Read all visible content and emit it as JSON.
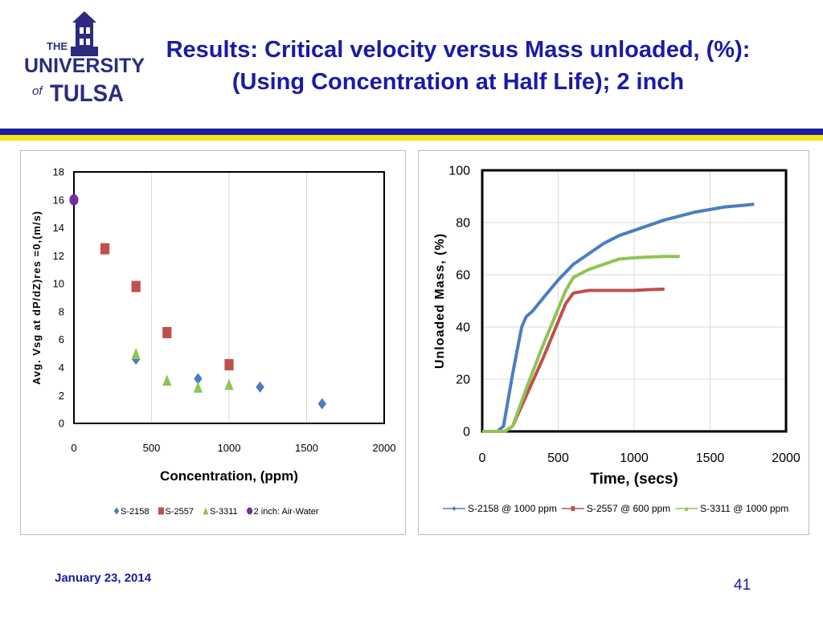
{
  "slide": {
    "title_line1": "Results: Critical velocity versus Mass unloaded, (%):",
    "title_line2": "(Using Concentration at Half Life); 2 inch",
    "date": "January 23, 2014",
    "page_number": "41"
  },
  "logo": {
    "text_the": "THE",
    "text_university": "UNIVERSITY",
    "text_of": "of",
    "text_tulsa": "TULSA"
  },
  "colors": {
    "title": "#1a1aa6",
    "rule_blue": "#1c1c9c",
    "rule_yellow": "#f5e51a",
    "series_blue": "#4a7ec0",
    "series_red": "#c0504d",
    "series_green": "#8fc454",
    "series_purple": "#7030a0"
  },
  "chart_data": [
    {
      "type": "scatter",
      "title": "",
      "xlabel": "Concentration, (ppm)",
      "ylabel": "Avg. Vsg at dP/dZ)res =0,(m/s)",
      "xlim": [
        0,
        2000
      ],
      "ylim": [
        0,
        18
      ],
      "xticks": [
        0,
        500,
        1000,
        1500,
        2000
      ],
      "yticks": [
        0,
        2,
        4,
        6,
        8,
        10,
        12,
        14,
        16,
        18
      ],
      "grid": "vertical",
      "legend_position": "bottom",
      "series": [
        {
          "name": "S-2158",
          "marker": "diamond",
          "color": "#4a7ec0",
          "x": [
            400,
            800,
            1200,
            1600
          ],
          "y": [
            4.6,
            3.2,
            2.6,
            1.4
          ]
        },
        {
          "name": "S-2557",
          "marker": "square",
          "color": "#c0504d",
          "x": [
            200,
            400,
            600,
            1000
          ],
          "y": [
            12.5,
            9.8,
            6.5,
            4.2
          ]
        },
        {
          "name": "S-3311",
          "marker": "triangle",
          "color": "#8fc454",
          "x": [
            400,
            600,
            800,
            1000
          ],
          "y": [
            5.0,
            3.1,
            2.6,
            2.8
          ]
        },
        {
          "name": "2 inch: Air-Water",
          "marker": "circle",
          "color": "#7030a0",
          "x": [
            0
          ],
          "y": [
            16.0
          ]
        }
      ]
    },
    {
      "type": "line",
      "title": "",
      "xlabel": "Time, (secs)",
      "ylabel": "Unloaded Mass, (%)",
      "xlim": [
        0,
        2000
      ],
      "ylim": [
        0,
        100
      ],
      "xticks": [
        0,
        500,
        1000,
        1500,
        2000
      ],
      "yticks": [
        0,
        20,
        40,
        60,
        80,
        100
      ],
      "grid": "both",
      "legend_position": "bottom",
      "series": [
        {
          "name": "S-2158 @ 1000 ppm",
          "marker": "diamond",
          "color": "#4a7ec0",
          "x": [
            0,
            100,
            140,
            200,
            260,
            290,
            330,
            400,
            500,
            600,
            700,
            800,
            900,
            1000,
            1100,
            1200,
            1300,
            1400,
            1500,
            1600,
            1700,
            1790
          ],
          "y": [
            0,
            0,
            2,
            22,
            40,
            44,
            46,
            51,
            58,
            64,
            68,
            72,
            75,
            77,
            79,
            81,
            82.5,
            84,
            85,
            86,
            86.5,
            87
          ]
        },
        {
          "name": "S-2557 @ 600 ppm",
          "marker": "square",
          "color": "#c0504d",
          "x": [
            0,
            150,
            200,
            300,
            400,
            500,
            550,
            600,
            700,
            800,
            900,
            1000,
            1100,
            1200
          ],
          "y": [
            0,
            0,
            2,
            15,
            28,
            42,
            49,
            53,
            54,
            54,
            54,
            54,
            54.3,
            54.5
          ]
        },
        {
          "name": "S-3311 @ 1000 ppm",
          "marker": "triangle",
          "color": "#8fc454",
          "x": [
            0,
            150,
            200,
            300,
            400,
            500,
            550,
            600,
            700,
            800,
            900,
            1000,
            1100,
            1200,
            1300
          ],
          "y": [
            0,
            0,
            2,
            18,
            33,
            47,
            54,
            59,
            62,
            64,
            66,
            66.5,
            66.8,
            67,
            67
          ]
        }
      ]
    }
  ]
}
